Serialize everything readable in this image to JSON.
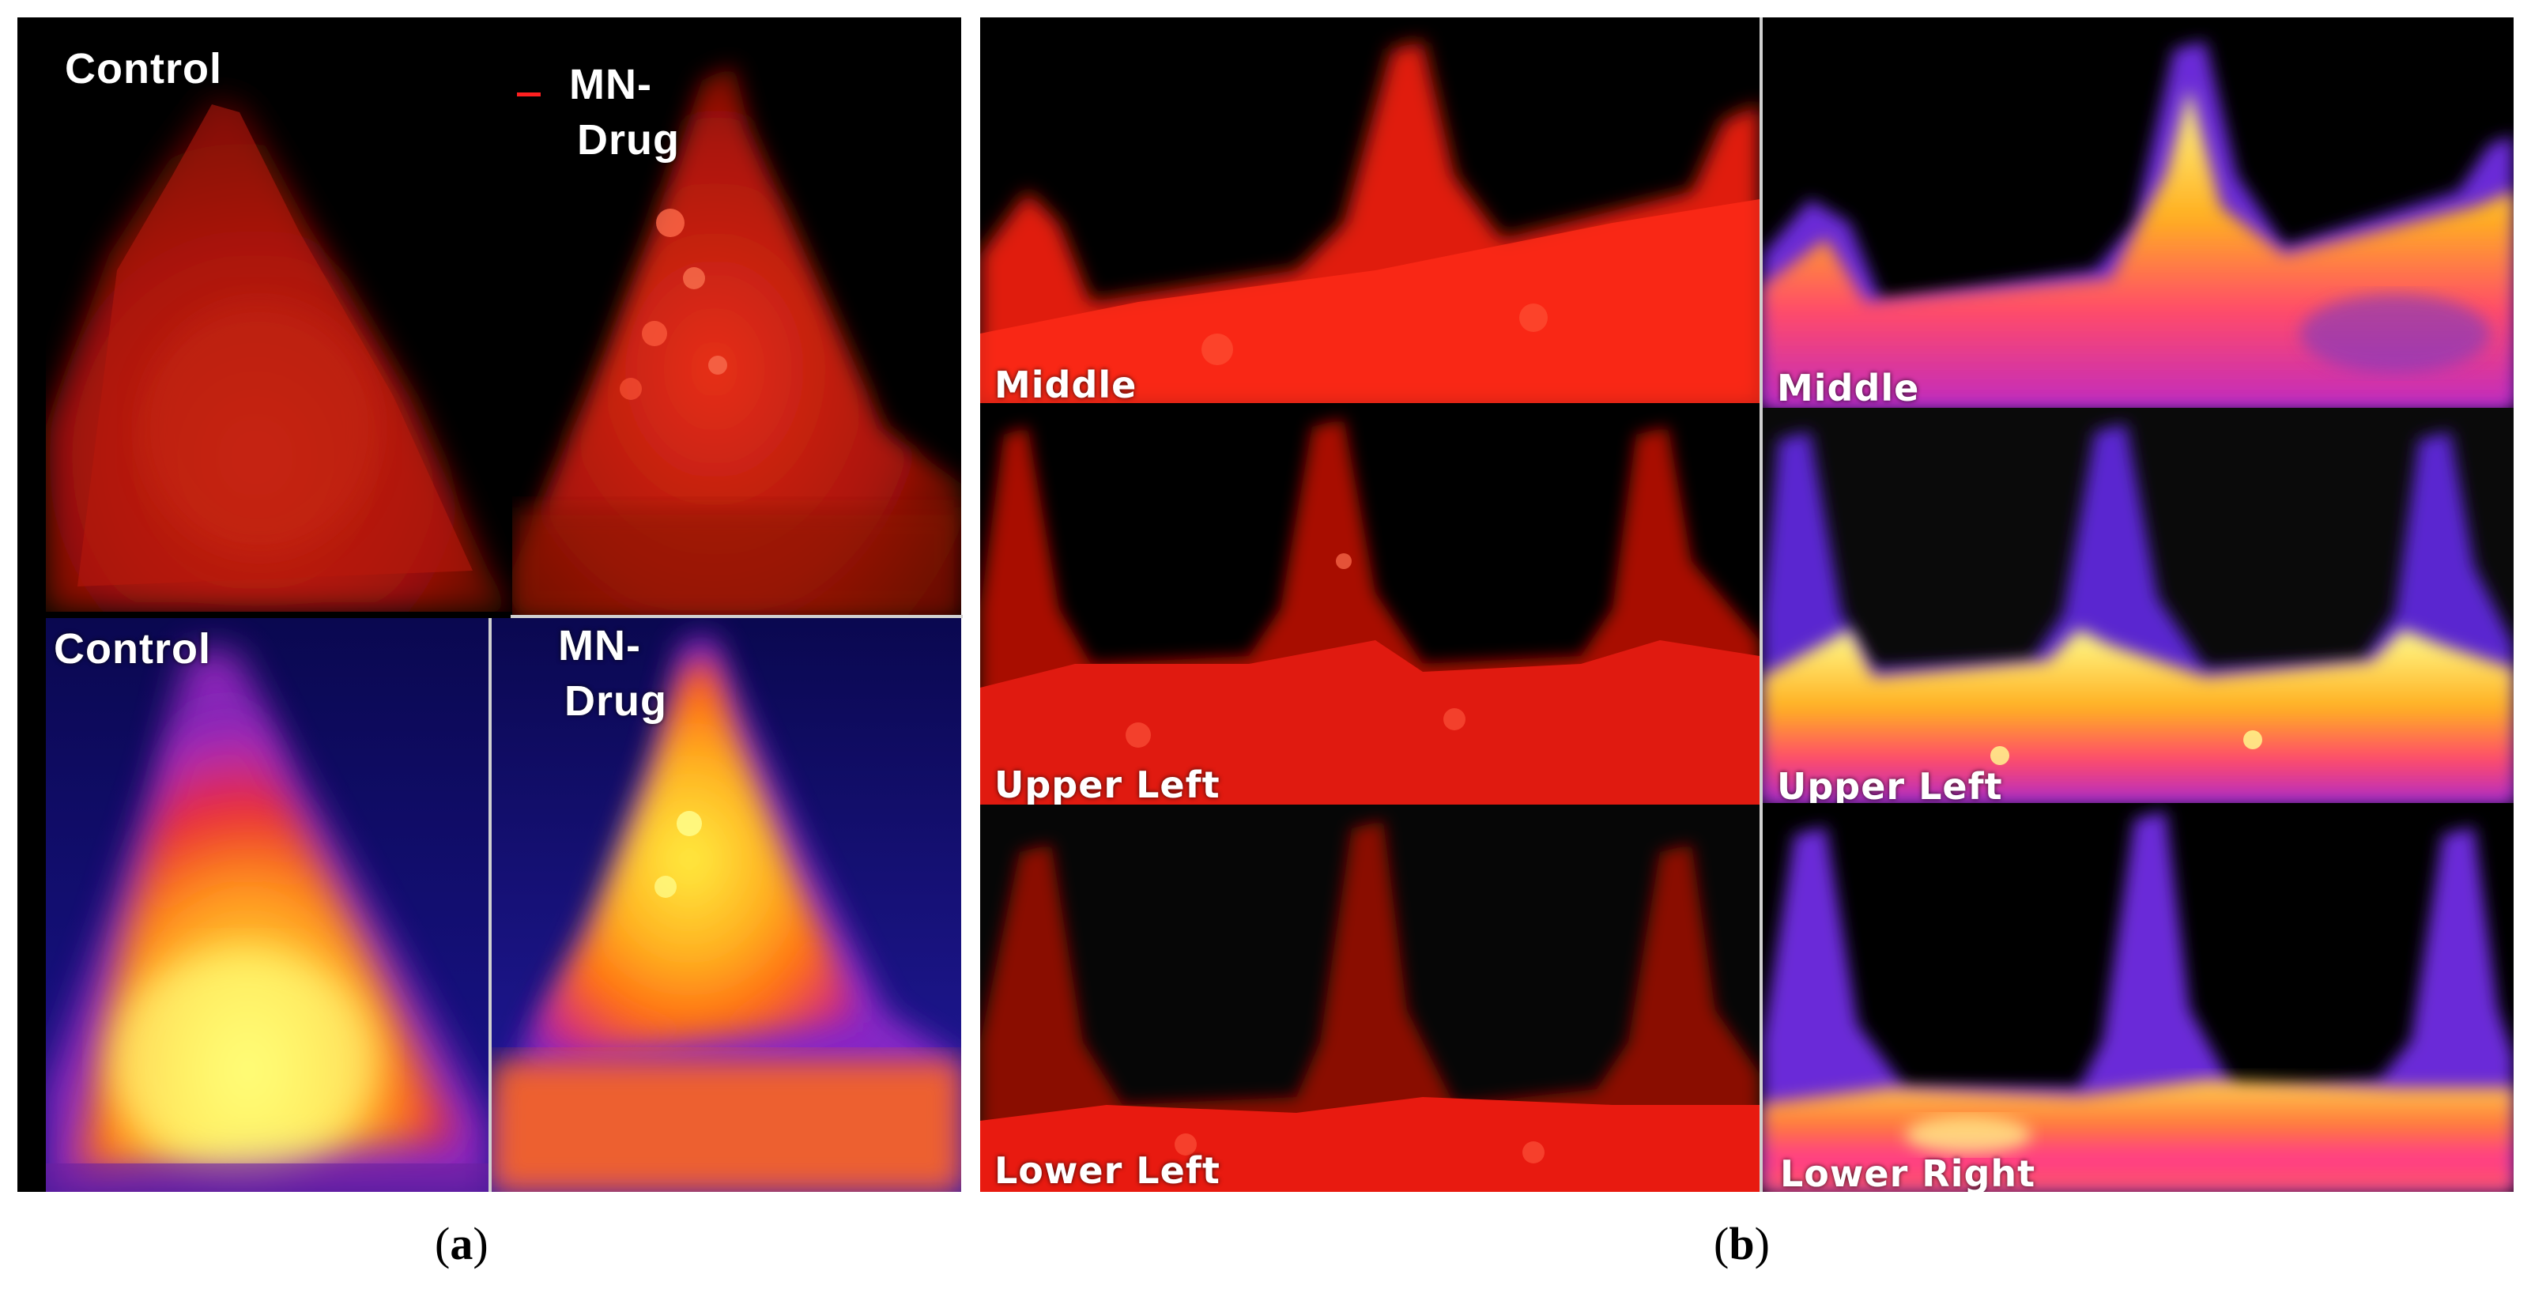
{
  "figure": {
    "panel_a": {
      "caption_open": "(",
      "caption_letter": "a",
      "caption_close": ")",
      "top_left_label": "Control",
      "top_right_label_line1": "MN-",
      "top_right_label_line2": "Drug",
      "bottom_left_label": "Control",
      "bottom_right_label_line1": "MN-",
      "bottom_right_label_line2": "Drug"
    },
    "panel_b": {
      "caption_open": "(",
      "caption_letter": "b",
      "caption_close": ")",
      "red_row1_label": "Middle",
      "red_row2_label": "Upper Left",
      "red_row3_label": "Lower  Left",
      "heat_row1_label": "Middle",
      "heat_row2_label": "Upper Left",
      "heat_row3_label": "Lower  Right"
    }
  }
}
